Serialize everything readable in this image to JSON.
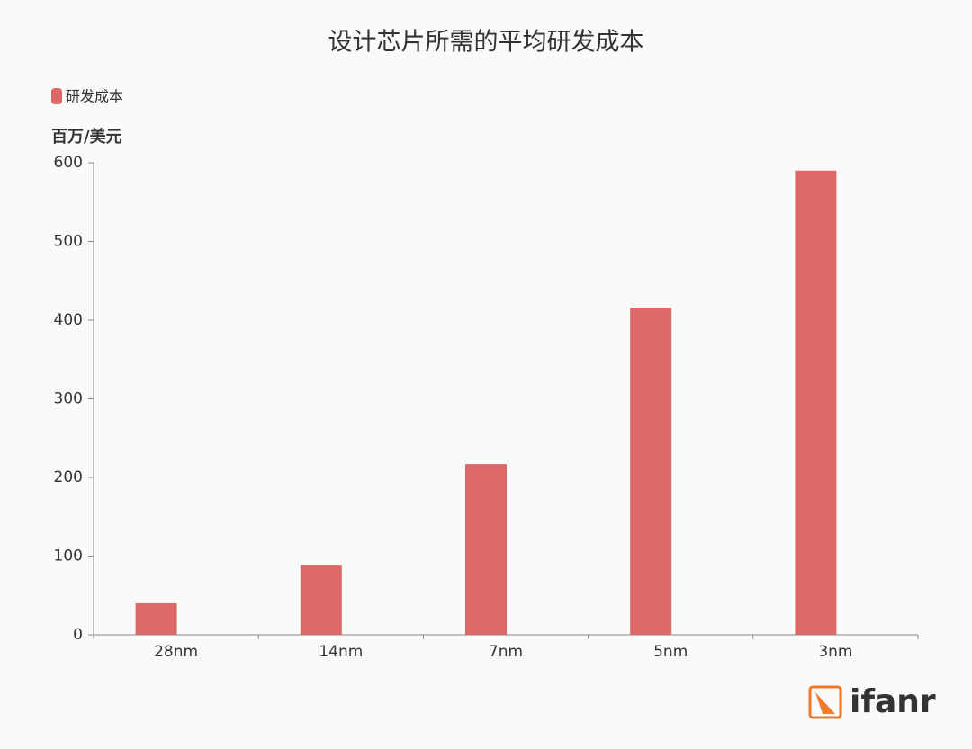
{
  "chart_data": {
    "type": "bar",
    "title": "设计芯片所需的平均研发成本",
    "y_label": "百万/美元",
    "categories": [
      "28nm",
      "14nm",
      "7nm",
      "5nm",
      "3nm"
    ],
    "series": [
      {
        "name": "研发成本",
        "color": "#dc6968",
        "values": [
          40,
          89,
          217,
          416,
          590
        ]
      }
    ],
    "ylim": [
      0,
      600
    ],
    "yticks": [
      0,
      100,
      200,
      300,
      400,
      500,
      600
    ],
    "legend": "top-left",
    "watermark": "ifanr"
  }
}
